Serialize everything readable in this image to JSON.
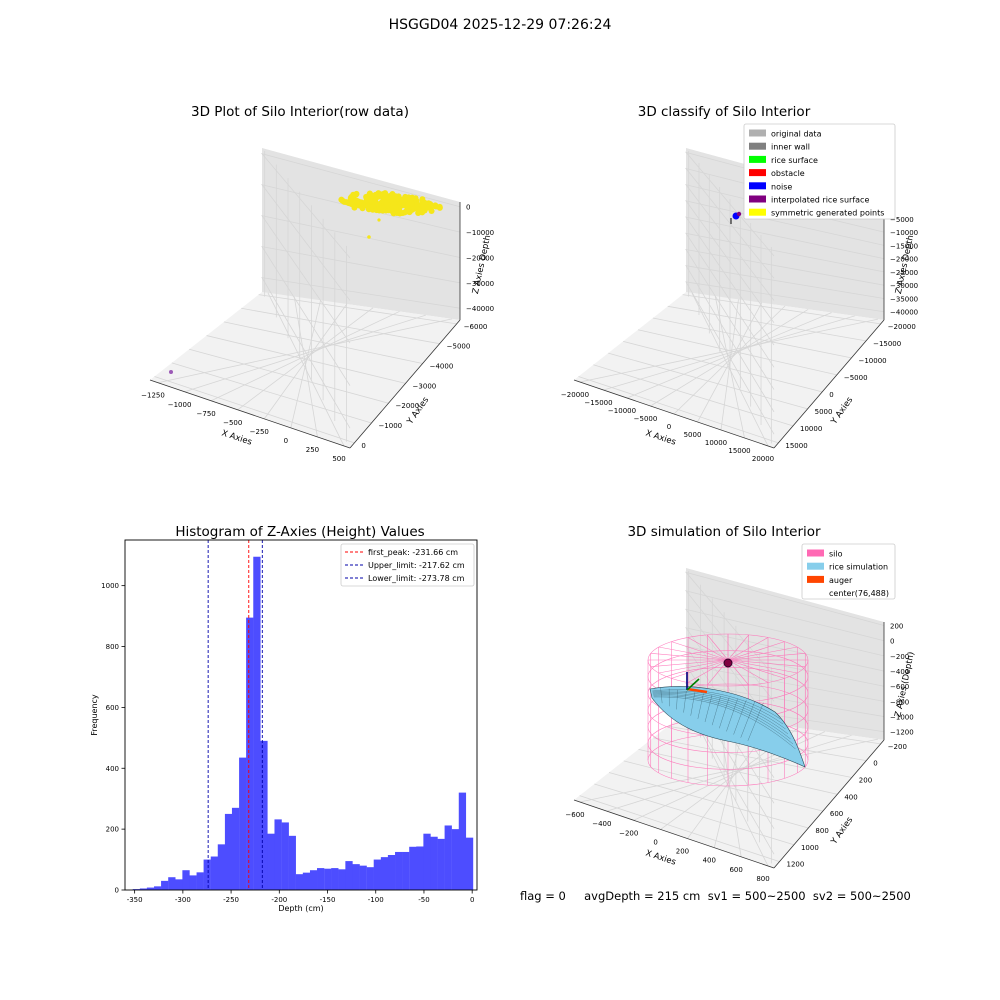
{
  "figure": {
    "suptitle": "HSGGD04 2025-12-29 07:26:24",
    "footer": "flag = 0     avgDepth = 215 cm  sv1 = 500~2500  sv2 = 500~2500"
  },
  "colors": {
    "histogram_bar": "#4d4dff",
    "first_peak_line": "#ff0000",
    "limit_lines": "#0000aa",
    "raw_points": "#f5e61a",
    "raw_outlier": "#9b59b6",
    "silo_wire": "#ff69b4",
    "rice_surface": "#87ceeb",
    "auger": "#ff4500"
  },
  "chart_data": [
    {
      "type": "scatter",
      "projection": "3d",
      "title": "3D Plot of Silo Interior(row data)",
      "xlabel": "X Axies",
      "ylabel": "Y Axies",
      "zlabel": "Z Axies  Depth",
      "x_ticks": [
        "−1250",
        "−1000",
        "−750",
        "−500",
        "−250",
        "0",
        "250",
        "500"
      ],
      "y_ticks": [
        "0",
        "−1000",
        "−2000",
        "−3000",
        "−4000",
        "−5000",
        "−6000"
      ],
      "z_ticks": [
        "0",
        "−10000",
        "−20000",
        "−30000",
        "−40000"
      ],
      "grid": true,
      "series": [
        {
          "points": [
            [
              -300,
              -1500,
              -500
            ],
            [
              -200,
              -1700,
              -900
            ],
            [
              -100,
              -1900,
              -1300
            ],
            [
              0,
              -2100,
              -1700
            ],
            [
              100,
              -2300,
              -2100
            ],
            [
              -250,
              -1600,
              -300
            ],
            [
              -150,
              -1800,
              -700
            ],
            [
              -50,
              -2000,
              -1100
            ],
            [
              50,
              -2200,
              -1500
            ],
            [
              150,
              -2400,
              -1900
            ],
            [
              -300,
              -1400,
              -1000
            ],
            [
              -200,
              -1600,
              -1400
            ],
            [
              -100,
              -1800,
              -1800
            ],
            [
              0,
              -2000,
              -2200
            ],
            [
              100,
              -2200,
              -2600
            ],
            [
              -20,
              -2300,
              -9000
            ],
            [
              -60,
              -2100,
              -5000
            ]
          ]
        },
        {
          "points": [
            [
              -1270,
              -300,
              -40000
            ]
          ]
        }
      ]
    },
    {
      "type": "scatter",
      "projection": "3d",
      "title": "3D classify of Silo Interior",
      "xlabel": "X Axies",
      "ylabel": "Y Axies",
      "zlabel": "Z Axies  Depth",
      "x_ticks": [
        "−20000",
        "−15000",
        "−10000",
        "−5000",
        "0",
        "5000",
        "10000",
        "15000",
        "20000"
      ],
      "y_ticks": [
        "15000",
        "10000",
        "5000",
        "0",
        "−5000",
        "−10000",
        "−15000",
        "−20000"
      ],
      "z_ticks": [
        "0",
        "−5000",
        "−10000",
        "−15000",
        "−20000",
        "−25000",
        "−30000",
        "−35000",
        "−40000"
      ],
      "legend": [
        {
          "label": "original data",
          "color": "#b0b0b0"
        },
        {
          "label": "inner wall",
          "color": "#808080"
        },
        {
          "label": "rice surface",
          "color": "#00ff00"
        },
        {
          "label": "obstacle",
          "color": "#ff0000"
        },
        {
          "label": "noise",
          "color": "#0000ff"
        },
        {
          "label": "interpolated rice surface",
          "color": "#800080"
        },
        {
          "label": "symmetric generated points",
          "color": "#ffff00"
        }
      ],
      "legend_loc": "upper right",
      "grid": true
    },
    {
      "type": "bar",
      "title": "Histogram of Z-Axies (Height) Values",
      "xlabel": "Depth (cm)",
      "ylabel": "Frequency",
      "xlim": [
        -360,
        5
      ],
      "ylim": [
        0,
        1150
      ],
      "x_ticks": [
        -350,
        -300,
        -250,
        -200,
        -150,
        -100,
        -50,
        0
      ],
      "y_ticks": [
        0,
        200,
        400,
        600,
        800,
        1000
      ],
      "bin_width": 7.35,
      "bin_starts": [
        -352.0,
        -344.6,
        -337.3,
        -329.9,
        -322.6,
        -315.2,
        -307.9,
        -300.5,
        -293.2,
        -285.8,
        -278.5,
        -271.1,
        -263.8,
        -256.4,
        -249.1,
        -241.7,
        -234.4,
        -227.0,
        -219.7,
        -212.3,
        -205.0,
        -197.6,
        -190.3,
        -182.9,
        -175.6,
        -168.2,
        -160.9,
        -153.5,
        -146.2,
        -138.8,
        -131.5,
        -124.1,
        -116.8,
        -109.4,
        -102.1,
        -94.7,
        -87.4,
        -80.0,
        -72.7,
        -65.3,
        -58.0,
        -50.6,
        -43.3,
        -35.9,
        -28.6,
        -21.2,
        -13.9,
        -6.5
      ],
      "values": [
        3,
        5,
        8,
        12,
        30,
        42,
        35,
        65,
        48,
        58,
        100,
        110,
        150,
        250,
        270,
        435,
        895,
        1095,
        490,
        185,
        232,
        222,
        178,
        52,
        57,
        65,
        72,
        70,
        72,
        68,
        95,
        85,
        80,
        75,
        100,
        108,
        115,
        125,
        125,
        142,
        143,
        185,
        175,
        168,
        212,
        200,
        320,
        172
      ],
      "lines": [
        {
          "label": "first_peak: -231.66 cm",
          "x": -231.66,
          "style": "dashed",
          "color": "#ff0000"
        },
        {
          "label": "Upper_limit: -217.62 cm",
          "x": -217.62,
          "style": "dashed",
          "color": "#0000aa"
        },
        {
          "label": "Lower_limit: -273.78 cm",
          "x": -273.78,
          "style": "dashed",
          "color": "#0000aa"
        }
      ],
      "legend_loc": "upper right",
      "grid": false
    },
    {
      "type": "surface",
      "projection": "3d",
      "title": "3D simulation of Silo Interior",
      "xlabel": "X Axies",
      "ylabel": "Y Axies",
      "zlabel": "Z Axies (Depth)",
      "x_ticks": [
        "−600",
        "−400",
        "−200",
        "0",
        "200",
        "400",
        "600",
        "800"
      ],
      "y_ticks": [
        "1200",
        "1000",
        "800",
        "600",
        "400",
        "200",
        "0",
        "−200"
      ],
      "z_ticks": [
        "200",
        "0",
        "−200",
        "−400",
        "−600",
        "−800",
        "−1000",
        "−1200"
      ],
      "legend": [
        {
          "label": "silo",
          "color": "#ff69b4"
        },
        {
          "label": "rice simulation",
          "color": "#87ceeb"
        },
        {
          "label": "auger",
          "color": "#ff4500"
        },
        {
          "label": "center(76,488)",
          "color": ""
        }
      ],
      "legend_loc": "upper right",
      "grid": true
    }
  ]
}
